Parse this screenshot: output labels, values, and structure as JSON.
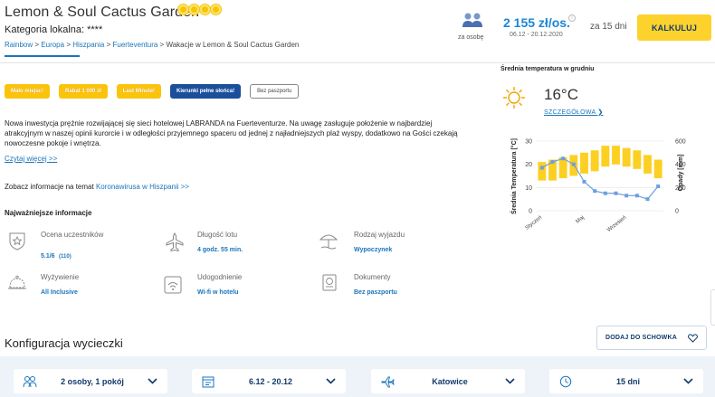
{
  "header": {
    "title": "Lemon & Soul Cactus Garden",
    "rating_stars": 4,
    "category": "Kategoria lokalna: ****",
    "breadcrumb": [
      "Rainbow",
      "Europa",
      "Hiszpania",
      "Fuerteventura"
    ],
    "breadcrumb_current": "Wakacje w Lemon & Soul Cactus Garden",
    "breadcrumb_sep": ">"
  },
  "booking": {
    "persons_label": "za osobę",
    "price": "2 155 zł/os.",
    "dates": "06.12 - 20.12.2020",
    "duration": "za 15 dni",
    "cta": "KALKULUJ"
  },
  "badges": [
    {
      "label": "Mało miejsc!",
      "style": "yellow"
    },
    {
      "label": "Rabat 1 000 zł",
      "style": "yellow"
    },
    {
      "label": "Last Minute!",
      "style": "yellow"
    },
    {
      "label": "Kierunki pełne słońca!",
      "style": "blue"
    },
    {
      "label": "Bez paszportu",
      "style": "white"
    }
  ],
  "description": {
    "text": "Nowa inwestycja prężnie rozwijającej się sieci hotelowej LABRANDA na Fuerteventurze. Na uwagę zasługuje położenie w najbardziej atrakcyjnym w naszej opinii kurorcie i w odległości przyjemnego spaceru od jednej z najładniejszych plaż wyspy, dodatkowo na Gości czekają nowoczesne pokoje i wnętrza.",
    "read_more": "Czytaj więcej >>",
    "covid_prefix": "Zobacz informacje na temat ",
    "covid_link": "Koronawirusa w Hiszpanii >>"
  },
  "key_info": {
    "title": "Najważniejsze informacje",
    "items": [
      {
        "label": "Ocena uczestników",
        "value": "5.1/6",
        "extra": "(110)",
        "icon": "rating-icon"
      },
      {
        "label": "Długość lotu",
        "value": "4 godz. 55 min.",
        "icon": "plane-icon"
      },
      {
        "label": "Rodzaj wyjazdu",
        "value": "Wypoczynek",
        "icon": "beach-umbrella-icon"
      },
      {
        "label": "Wyżywienie",
        "value": "All Inclusive",
        "icon": "cloche-icon"
      },
      {
        "label": "Udogodnienie",
        "value": "Wi-fi w hotelu",
        "icon": "wifi-icon"
      },
      {
        "label": "Dokumenty",
        "value": "Bez paszportu",
        "icon": "passport-icon"
      }
    ]
  },
  "weather": {
    "title": "Średnia temperatura w grudniu",
    "temp": "16°C",
    "details": "SZCZEGÓŁOWA",
    "icon": "sun-icon"
  },
  "chart_data": {
    "type": "bar",
    "ylabel": "Średnia Temperatura [°C]",
    "ylabel_right": "Opady [mm]",
    "ylim": [
      0,
      30
    ],
    "ylim_right": [
      0,
      600
    ],
    "yticks": [
      "0",
      "10",
      "20",
      "30"
    ],
    "yticks_right": [
      "0",
      "200",
      "400",
      "600"
    ],
    "x_tick_labels": [
      "Styczeń",
      "Maj",
      "Wrzesień"
    ],
    "series": [
      {
        "name": "Temperatura",
        "kind": "range",
        "color": "#fcd022",
        "low": [
          13,
          13,
          14,
          15,
          16,
          17,
          19,
          20,
          19,
          18,
          16,
          14
        ],
        "high": [
          21,
          22,
          23,
          24,
          25,
          26,
          28,
          28,
          27,
          26,
          24,
          22
        ]
      },
      {
        "name": "Opady",
        "kind": "line",
        "color": "#6d9ee0",
        "values": [
          370,
          420,
          450,
          400,
          250,
          170,
          150,
          150,
          130,
          130,
          100,
          210
        ]
      }
    ],
    "colors": {
      "temp": "#fcd022",
      "rain": "#6d9ee0"
    },
    "grid": true
  },
  "config": {
    "title": "Konfiguracja wycieczki",
    "save_button": "DODAJ DO SCHOWKA",
    "selectors": [
      {
        "value": "2 osoby, 1 pokój",
        "icon": "people-icon"
      },
      {
        "value": "6.12 - 20.12",
        "icon": "calendar-icon"
      },
      {
        "value": "Katowice",
        "icon": "plane-icon"
      },
      {
        "value": "15 dni",
        "icon": "clock-icon"
      }
    ]
  }
}
